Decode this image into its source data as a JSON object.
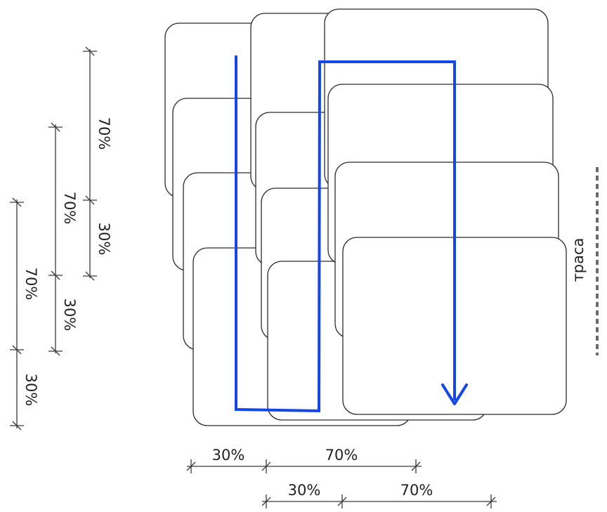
{
  "diagram": {
    "accent_color": "#1446e8",
    "road_label": "траса",
    "left_dimension_chains": [
      {
        "segments": [
          "70%",
          "30%"
        ]
      },
      {
        "segments": [
          "70%",
          "30%"
        ]
      },
      {
        "segments": [
          "70%",
          "30%"
        ]
      }
    ],
    "bottom_dimension_chains": [
      {
        "segments": [
          "30%",
          "70%"
        ]
      },
      {
        "segments": [
          "30%",
          "70%"
        ]
      }
    ]
  }
}
